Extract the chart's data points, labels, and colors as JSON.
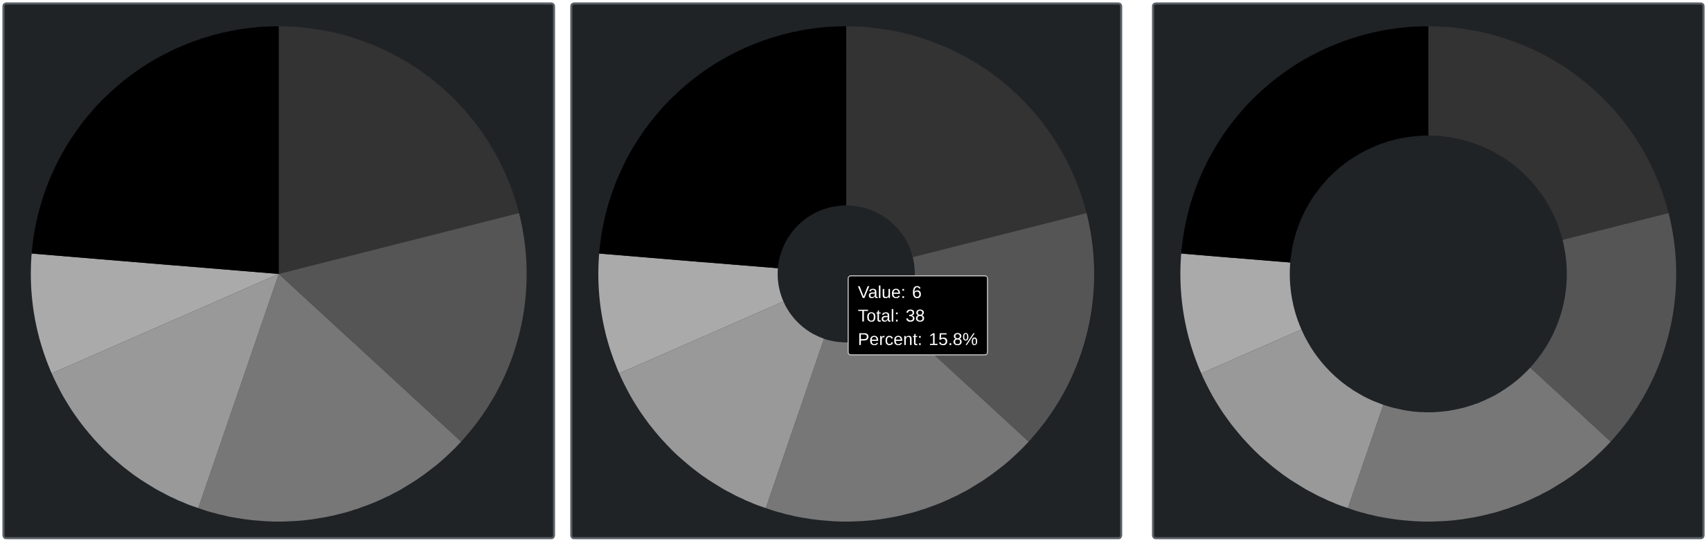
{
  "chart_data": [
    {
      "type": "pie",
      "categories": [
        null,
        null,
        null,
        null,
        null,
        null
      ],
      "values": [
        21.05,
        15.79,
        18.42,
        13.16,
        7.89,
        23.69
      ],
      "colors": [
        "#333333",
        "#555555",
        "#777777",
        "#999999",
        "#aaaaaa",
        "#000000"
      ]
    },
    {
      "type": "donut",
      "categories": [
        null,
        null,
        null,
        null,
        null,
        null
      ],
      "values": [
        21.05,
        15.79,
        18.42,
        13.16,
        7.89,
        23.69
      ],
      "colors": [
        "#333333",
        "#555555",
        "#777777",
        "#999999",
        "#aaaaaa",
        "#000000"
      ],
      "annotations": [
        "Value: 6",
        "Total: 38",
        "Percent: 15.8%"
      ]
    },
    {
      "type": "donut",
      "categories": [
        null,
        null,
        null,
        null,
        null,
        null
      ],
      "values": [
        21.05,
        15.79,
        18.42,
        13.16,
        7.89,
        23.69
      ],
      "colors": [
        "#333333",
        "#555555",
        "#777777",
        "#999999",
        "#aaaaaa",
        "#000000"
      ]
    }
  ]
}
